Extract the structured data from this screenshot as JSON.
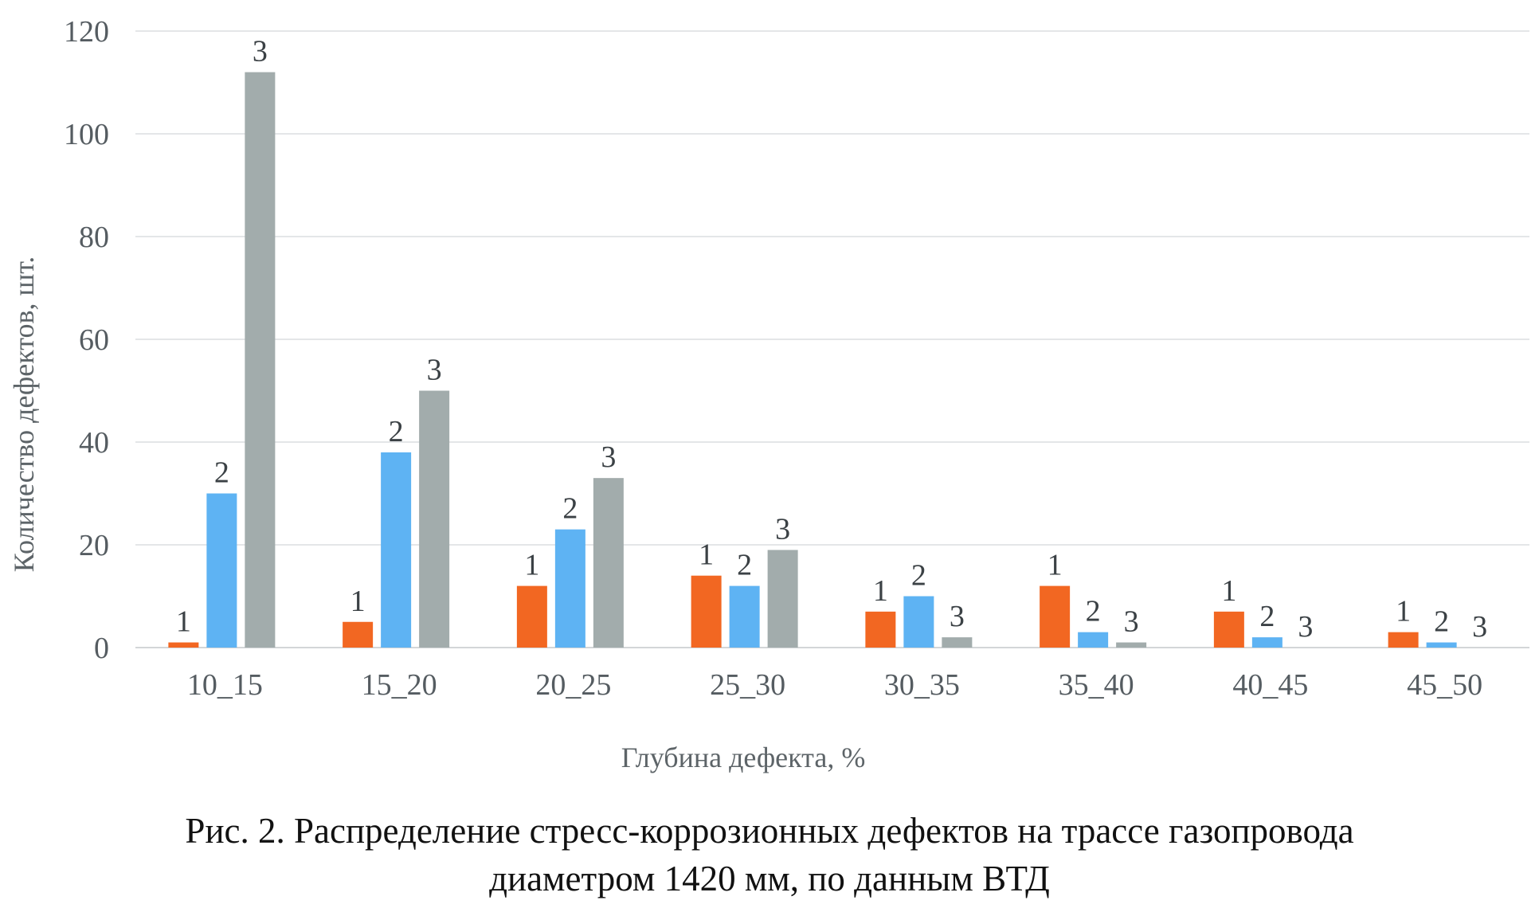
{
  "chart_data": {
    "type": "bar",
    "categories": [
      "10_15",
      "15_20",
      "20_25",
      "25_30",
      "30_35",
      "35_40",
      "40_45",
      "45_50"
    ],
    "series": [
      {
        "values": [
          1,
          5,
          12,
          14,
          7,
          12,
          7,
          3
        ],
        "color": "#f26722",
        "data_label": "1"
      },
      {
        "values": [
          30,
          38,
          23,
          12,
          10,
          3,
          2,
          1
        ],
        "color": "#5eb3f3",
        "data_label": "2"
      },
      {
        "values": [
          112,
          50,
          33,
          19,
          2,
          1,
          0,
          0
        ],
        "color": "#a2acac",
        "data_label": "3"
      }
    ],
    "xlabel": "Глубина дефекта, %",
    "ylabel": "Количество дефектов, шт.",
    "ylim": [
      0,
      120
    ],
    "yticks": [
      0,
      20,
      40,
      60,
      80,
      100,
      120
    ],
    "grid": true
  },
  "caption": {
    "line1": "Рис. 2. Распределение стресс-коррозионных дефектов на трассе газопровода",
    "line2": "диаметром 1420 мм, по данным ВТД"
  }
}
